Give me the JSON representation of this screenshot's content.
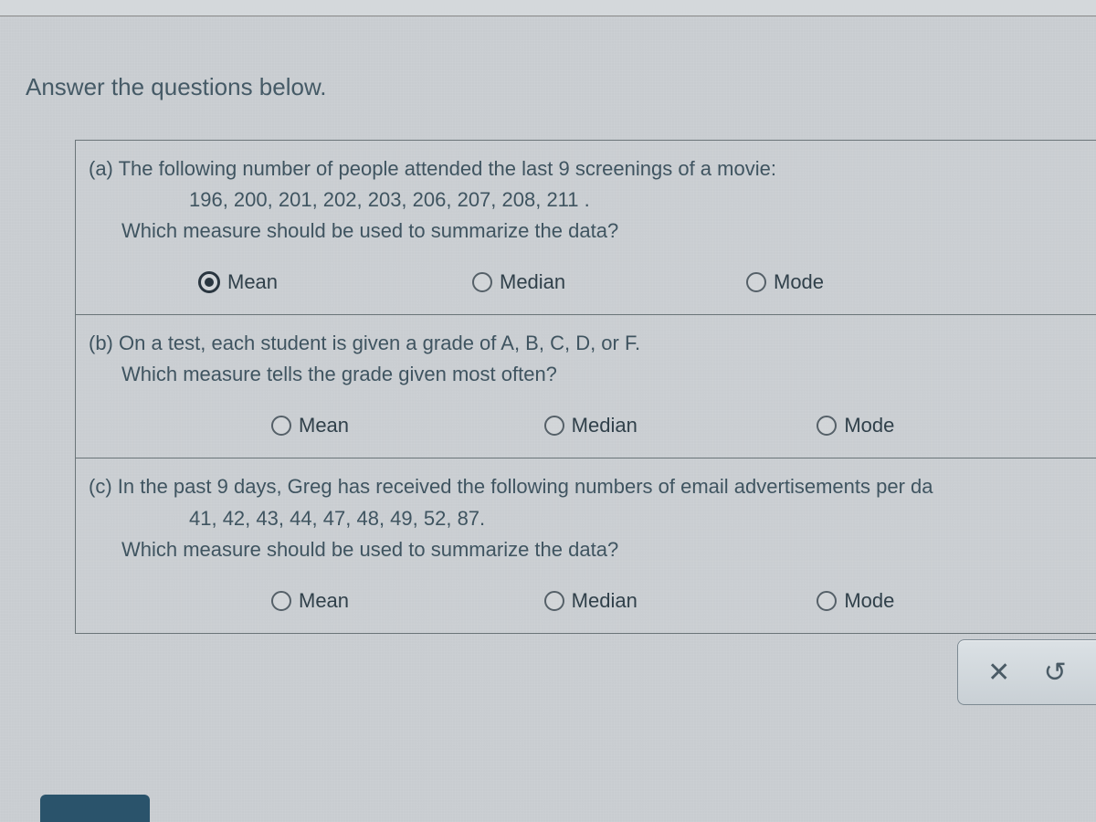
{
  "heading": "Answer the questions below.",
  "parts": {
    "a": {
      "label": "(a)",
      "line1": "The following number of people attended the last 9 screenings of a movie:",
      "data": "196, 200, 201, 202, 203, 206, 207, 208, 211 .",
      "line2": "Which measure should be used to summarize the data?",
      "options": {
        "mean": "Mean",
        "median": "Median",
        "mode": "Mode"
      },
      "selected": "mean"
    },
    "b": {
      "label": "(b)",
      "line1": "On a test, each student is given a grade of A, B, C, D, or F.",
      "line2": "Which measure tells the grade given most often?",
      "options": {
        "mean": "Mean",
        "median": "Median",
        "mode": "Mode"
      }
    },
    "c": {
      "label": "(c)",
      "line1": "In the past 9 days, Greg has received the following numbers of email advertisements per da",
      "data": "41, 42, 43, 44, 47, 48, 49, 52, 87.",
      "line2": "Which measure should be used to summarize the data?",
      "options": {
        "mean": "Mean",
        "median": "Median",
        "mode": "Mode"
      }
    }
  },
  "buttons": {
    "clear": "×",
    "reset": "↺"
  }
}
